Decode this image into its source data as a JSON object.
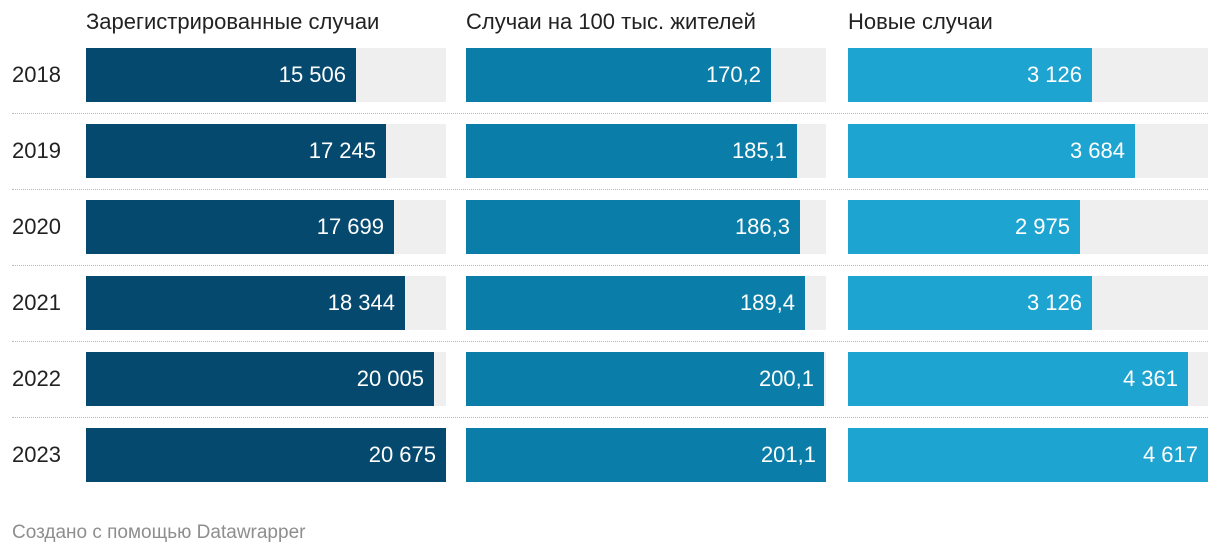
{
  "chart_data": {
    "type": "bar",
    "orientation": "horizontal",
    "categories": [
      "2018",
      "2019",
      "2020",
      "2021",
      "2022",
      "2023"
    ],
    "series": [
      {
        "name": "Зарегистрированные случаи",
        "values": [
          15506,
          17245,
          17699,
          18344,
          20005,
          20675
        ],
        "labels": [
          "15 506",
          "17 245",
          "17 699",
          "18 344",
          "20 005",
          "20 675"
        ],
        "max": 20675,
        "color": "#05496f"
      },
      {
        "name": "Случаи на 100 тыс. жителей",
        "values": [
          170.2,
          185.1,
          186.3,
          189.4,
          200.1,
          201.1
        ],
        "labels": [
          "170,2",
          "185,1",
          "186,3",
          "189,4",
          "200,1",
          "201,1"
        ],
        "max": 201.1,
        "color": "#0a7ea8"
      },
      {
        "name": "Новые случаи",
        "values": [
          3126,
          3684,
          2975,
          3126,
          4361,
          4617
        ],
        "labels": [
          "3 126",
          "3 684",
          "2 975",
          "3 126",
          "4 361",
          "4 617"
        ],
        "max": 4617,
        "color": "#1da4d0"
      }
    ],
    "track_color": "#efefef"
  },
  "footer": "Создано с помощью Datawrapper"
}
